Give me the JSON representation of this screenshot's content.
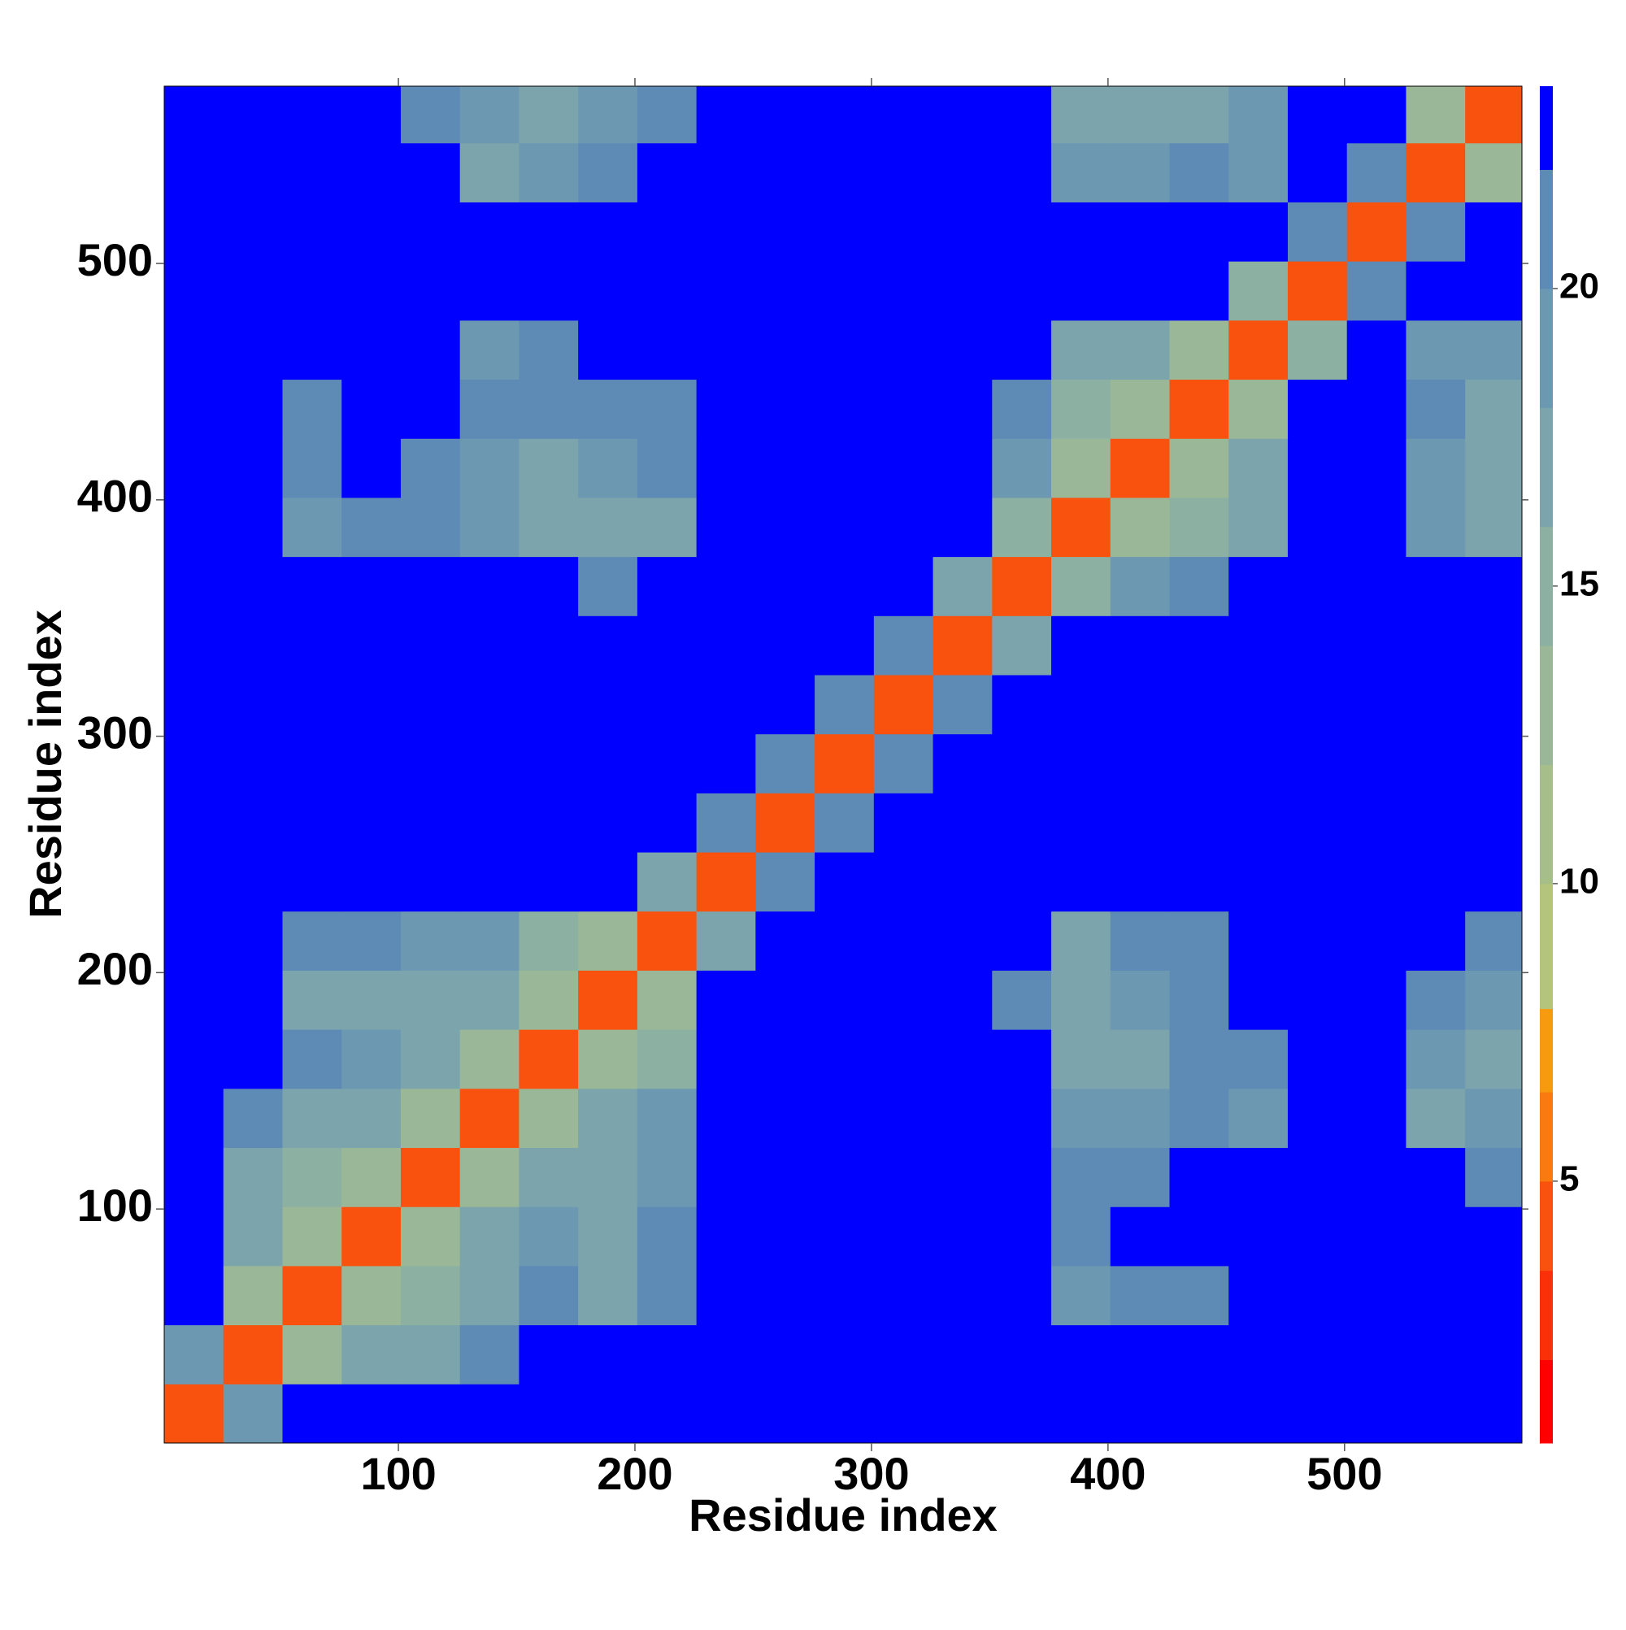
{
  "chart_data": {
    "type": "heatmap",
    "x_label": "Residue index",
    "y_label": "Residue index",
    "xlim": [
      1,
      575
    ],
    "ylim": [
      1,
      575
    ],
    "xticks": [
      100,
      200,
      300,
      400,
      500
    ],
    "yticks": [
      100,
      200,
      300,
      400,
      500
    ],
    "x_bins": [
      1,
      26,
      51,
      76,
      101,
      126,
      151,
      176,
      201,
      226,
      251,
      276,
      301,
      326,
      351,
      376,
      401,
      426,
      451,
      476,
      501,
      526,
      551,
      575
    ],
    "y_bins": [
      1,
      26,
      51,
      76,
      101,
      126,
      151,
      176,
      201,
      226,
      251,
      276,
      301,
      326,
      351,
      376,
      401,
      426,
      451,
      476,
      501,
      526,
      551,
      575
    ],
    "values": [
      [
        4,
        18,
        23,
        23,
        23,
        23,
        23,
        23,
        23,
        23,
        23,
        23,
        23,
        23,
        23,
        23,
        23,
        23,
        23,
        23,
        23,
        23,
        23
      ],
      [
        18,
        4,
        12,
        16,
        17,
        20,
        23,
        23,
        23,
        23,
        23,
        23,
        23,
        23,
        23,
        23,
        23,
        23,
        23,
        23,
        23,
        23,
        23
      ],
      [
        23,
        12,
        4,
        12,
        15,
        17,
        21,
        17,
        21,
        23,
        23,
        23,
        23,
        23,
        23,
        19,
        20,
        21,
        23,
        23,
        23,
        23,
        23
      ],
      [
        23,
        16,
        12,
        4,
        12,
        16,
        19,
        17,
        20,
        23,
        23,
        23,
        23,
        23,
        23,
        21,
        23,
        23,
        23,
        23,
        23,
        23,
        23
      ],
      [
        23,
        17,
        15,
        12,
        4,
        12,
        17,
        16,
        18,
        23,
        23,
        23,
        23,
        23,
        23,
        21,
        21,
        23,
        23,
        23,
        23,
        23,
        21
      ],
      [
        23,
        20,
        17,
        16,
        12,
        4,
        12,
        16,
        18,
        23,
        23,
        23,
        23,
        23,
        23,
        19,
        18,
        21,
        18,
        23,
        23,
        17,
        18
      ],
      [
        23,
        23,
        21,
        19,
        17,
        12,
        4,
        12,
        15,
        23,
        23,
        23,
        23,
        23,
        23,
        17,
        17,
        21,
        21,
        23,
        23,
        19,
        16
      ],
      [
        23,
        23,
        17,
        17,
        16,
        16,
        12,
        4,
        12,
        23,
        23,
        23,
        23,
        23,
        21,
        16,
        18,
        21,
        23,
        23,
        23,
        21,
        18
      ],
      [
        23,
        23,
        21,
        20,
        18,
        18,
        15,
        12,
        4,
        16,
        23,
        23,
        23,
        23,
        23,
        17,
        20,
        21,
        23,
        23,
        23,
        23,
        21
      ],
      [
        23,
        23,
        23,
        23,
        23,
        23,
        23,
        23,
        16,
        4,
        20,
        23,
        23,
        23,
        23,
        23,
        23,
        23,
        23,
        23,
        23,
        23,
        23
      ],
      [
        23,
        23,
        23,
        23,
        23,
        23,
        23,
        23,
        23,
        20,
        4,
        20,
        23,
        23,
        23,
        23,
        23,
        23,
        23,
        23,
        23,
        23,
        23
      ],
      [
        23,
        23,
        23,
        23,
        23,
        23,
        23,
        23,
        23,
        23,
        20,
        4,
        20,
        23,
        23,
        23,
        23,
        23,
        23,
        23,
        23,
        23,
        23
      ],
      [
        23,
        23,
        23,
        23,
        23,
        23,
        23,
        23,
        23,
        23,
        23,
        20,
        4,
        20,
        23,
        23,
        23,
        23,
        23,
        23,
        23,
        23,
        23
      ],
      [
        23,
        23,
        23,
        23,
        23,
        23,
        23,
        23,
        23,
        23,
        23,
        23,
        20,
        4,
        16,
        23,
        23,
        23,
        23,
        23,
        23,
        23,
        23
      ],
      [
        23,
        23,
        23,
        23,
        23,
        23,
        23,
        21,
        23,
        23,
        23,
        23,
        23,
        16,
        4,
        14,
        19,
        21,
        23,
        23,
        23,
        23,
        23
      ],
      [
        23,
        23,
        19,
        21,
        21,
        19,
        17,
        16,
        17,
        23,
        23,
        23,
        23,
        23,
        14,
        4,
        12,
        15,
        17,
        23,
        23,
        19,
        16
      ],
      [
        23,
        23,
        20,
        23,
        21,
        18,
        17,
        18,
        20,
        23,
        23,
        23,
        23,
        23,
        19,
        12,
        4,
        12,
        16,
        23,
        23,
        18,
        17
      ],
      [
        23,
        23,
        21,
        23,
        23,
        21,
        21,
        21,
        21,
        23,
        23,
        23,
        23,
        23,
        21,
        15,
        12,
        4,
        12,
        23,
        23,
        21,
        17
      ],
      [
        23,
        23,
        23,
        23,
        23,
        18,
        21,
        23,
        23,
        23,
        23,
        23,
        23,
        23,
        23,
        17,
        16,
        12,
        4,
        15,
        23,
        19,
        18
      ],
      [
        23,
        23,
        23,
        23,
        23,
        23,
        23,
        23,
        23,
        23,
        23,
        23,
        23,
        23,
        23,
        23,
        23,
        23,
        15,
        4,
        20,
        23,
        23
      ],
      [
        23,
        23,
        23,
        23,
        23,
        23,
        23,
        23,
        23,
        23,
        23,
        23,
        23,
        23,
        23,
        23,
        23,
        23,
        23,
        20,
        4,
        20,
        23
      ],
      [
        23,
        23,
        23,
        23,
        23,
        17,
        19,
        21,
        23,
        23,
        23,
        23,
        23,
        23,
        23,
        19,
        18,
        21,
        19,
        23,
        20,
        4,
        13
      ],
      [
        23,
        23,
        23,
        23,
        21,
        18,
        16,
        18,
        21,
        23,
        23,
        23,
        23,
        23,
        23,
        16,
        17,
        17,
        18,
        23,
        23,
        13,
        4
      ]
    ],
    "colorbar": {
      "clim": [
        0.6,
        23.4
      ],
      "ticks": [
        5,
        10,
        15,
        20
      ],
      "bands": [
        {
          "from": 0.6,
          "to": 2,
          "color": "#ff0000"
        },
        {
          "from": 2,
          "to": 3.5,
          "color": "#fb3008"
        },
        {
          "from": 3.5,
          "to": 5,
          "color": "#f8520e"
        },
        {
          "from": 5,
          "to": 6.5,
          "color": "#f87a10"
        },
        {
          "from": 6.5,
          "to": 7.9,
          "color": "#f89a10"
        },
        {
          "from": 7.9,
          "to": 10,
          "color": "#b4c47c"
        },
        {
          "from": 10,
          "to": 12,
          "color": "#a6be8a"
        },
        {
          "from": 12,
          "to": 14,
          "color": "#9ab898"
        },
        {
          "from": 14,
          "to": 16,
          "color": "#8cb0a2"
        },
        {
          "from": 16,
          "to": 18,
          "color": "#7ca4ac"
        },
        {
          "from": 18,
          "to": 20,
          "color": "#6c98b2"
        },
        {
          "from": 20,
          "to": 22,
          "color": "#5e8ab6"
        },
        {
          "from": 22,
          "to": 23.4,
          "color": "#0000ff"
        }
      ]
    }
  }
}
